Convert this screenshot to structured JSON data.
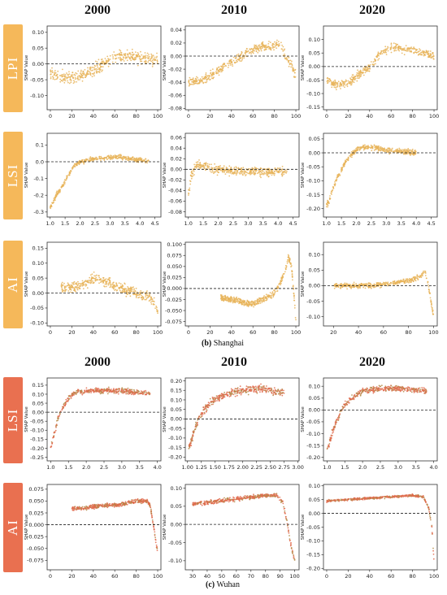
{
  "headers_top": [
    "2000",
    "2010",
    "2020"
  ],
  "headers_bottom": [
    "2000",
    "2010",
    "2020"
  ],
  "rows": [
    {
      "label": "LPI",
      "color": "#F5B85A"
    },
    {
      "label": "LSI",
      "color": "#F5B85A"
    },
    {
      "label": "AI",
      "color": "#F5B85A"
    },
    {
      "label": "LSI",
      "color": "#E97050"
    },
    {
      "label": "AI",
      "color": "#E97050"
    }
  ],
  "captions": [
    {
      "letter": "(b)",
      "city": "Shanghai"
    },
    {
      "letter": "(c)",
      "city": "Wuhan"
    }
  ],
  "colors": {
    "shanghai_points": "#E8B45A",
    "wuhan_points": "#E06A4C",
    "wuhan_points_alt": "#B58A48",
    "baseline": "#222222"
  },
  "chart_data": [
    {
      "id": "sh-lpi-2000",
      "type": "scatter",
      "row": 0,
      "col": 0,
      "ylabel": "SHAP Value",
      "xlim": [
        -3,
        103
      ],
      "ylim": [
        -0.145,
        0.12
      ],
      "xticks": [
        0,
        20,
        40,
        60,
        80,
        100
      ],
      "yticks": [
        -0.1,
        -0.05,
        0.0,
        0.05,
        0.1
      ],
      "x": [
        0,
        10,
        20,
        30,
        40,
        50,
        60,
        70,
        80,
        100
      ],
      "y": [
        -0.03,
        -0.04,
        -0.045,
        -0.035,
        -0.02,
        0.0,
        0.02,
        0.03,
        0.02,
        0.015
      ],
      "spread": 0.028
    },
    {
      "id": "sh-lpi-2010",
      "type": "scatter",
      "row": 0,
      "col": 1,
      "ylabel": "SHAP Value",
      "xlim": [
        -3,
        103
      ],
      "ylim": [
        -0.082,
        0.046
      ],
      "xticks": [
        0,
        20,
        40,
        60,
        80,
        100
      ],
      "yticks": [
        -0.08,
        -0.06,
        -0.04,
        -0.02,
        0.0,
        0.02,
        0.04
      ],
      "x": [
        0,
        10,
        20,
        30,
        40,
        50,
        60,
        70,
        80,
        85,
        90,
        95,
        100
      ],
      "y": [
        -0.04,
        -0.038,
        -0.03,
        -0.02,
        -0.01,
        0.0,
        0.01,
        0.015,
        0.015,
        0.02,
        0.0,
        -0.01,
        -0.03
      ],
      "spread": 0.01
    },
    {
      "id": "sh-lpi-2020",
      "type": "scatter",
      "row": 0,
      "col": 2,
      "ylabel": "SHAP Value",
      "xlim": [
        -3,
        103
      ],
      "ylim": [
        -0.16,
        0.15
      ],
      "xticks": [
        0,
        20,
        40,
        60,
        80,
        100
      ],
      "yticks": [
        -0.15,
        -0.1,
        -0.05,
        0.0,
        0.05,
        0.1
      ],
      "x": [
        0,
        10,
        20,
        30,
        40,
        50,
        60,
        70,
        80,
        90,
        100
      ],
      "y": [
        -0.05,
        -0.07,
        -0.06,
        -0.03,
        0.0,
        0.05,
        0.07,
        0.065,
        0.06,
        0.05,
        0.04
      ],
      "spread": 0.022
    },
    {
      "id": "sh-lsi-2000",
      "type": "scatter",
      "row": 1,
      "col": 0,
      "ylabel": "SHAP Value",
      "xlim": [
        0.9,
        4.7
      ],
      "ylim": [
        -0.33,
        0.17
      ],
      "xticks": [
        1.0,
        1.5,
        2.0,
        2.5,
        3.0,
        3.5,
        4.0,
        4.5
      ],
      "yticks": [
        -0.3,
        -0.2,
        -0.1,
        0.0,
        0.1
      ],
      "x": [
        1.0,
        1.1,
        1.2,
        1.4,
        1.6,
        1.8,
        2.0,
        2.3,
        2.6,
        3.0,
        3.3,
        3.6,
        3.9,
        4.3
      ],
      "y": [
        -0.27,
        -0.25,
        -0.2,
        -0.15,
        -0.08,
        -0.03,
        0.0,
        0.01,
        0.02,
        0.025,
        0.03,
        0.02,
        0.01,
        0.005
      ],
      "spread": 0.02
    },
    {
      "id": "sh-lsi-2010",
      "type": "scatter",
      "row": 1,
      "col": 1,
      "ylabel": "SHAP Value",
      "xlim": [
        0.9,
        4.7
      ],
      "ylim": [
        -0.09,
        0.068
      ],
      "xticks": [
        1.0,
        1.5,
        2.0,
        2.5,
        3.0,
        3.5,
        4.0,
        4.5
      ],
      "yticks": [
        -0.08,
        -0.06,
        -0.04,
        -0.02,
        0.0,
        0.02,
        0.04,
        0.06
      ],
      "x": [
        1.0,
        1.1,
        1.3,
        1.6,
        2.0,
        2.5,
        3.0,
        3.5,
        4.0,
        4.3
      ],
      "y": [
        -0.05,
        -0.01,
        0.01,
        0.005,
        0.0,
        -0.002,
        -0.003,
        -0.005,
        -0.004,
        -0.003
      ],
      "spread": 0.012
    },
    {
      "id": "sh-lsi-2020",
      "type": "scatter",
      "row": 1,
      "col": 2,
      "ylabel": "SHAP Value",
      "xlim": [
        0.9,
        4.7
      ],
      "ylim": [
        -0.23,
        0.07
      ],
      "xticks": [
        1.0,
        1.5,
        2.0,
        2.5,
        3.0,
        3.5,
        4.0,
        4.5
      ],
      "yticks": [
        -0.2,
        -0.15,
        -0.1,
        -0.05,
        0.0,
        0.05
      ],
      "x": [
        1.0,
        1.1,
        1.2,
        1.4,
        1.6,
        1.8,
        2.0,
        2.2,
        2.5,
        3.0,
        3.5,
        4.0
      ],
      "y": [
        -0.19,
        -0.17,
        -0.13,
        -0.08,
        -0.04,
        -0.01,
        0.01,
        0.02,
        0.02,
        0.01,
        0.005,
        0.0
      ],
      "spread": 0.014
    },
    {
      "id": "sh-ai-2000",
      "type": "scatter",
      "row": 2,
      "col": 0,
      "ylabel": "SHAP Value",
      "xlim": [
        -3,
        103
      ],
      "ylim": [
        -0.11,
        0.17
      ],
      "xticks": [
        0,
        20,
        40,
        60,
        80,
        100
      ],
      "yticks": [
        -0.1,
        -0.05,
        0.0,
        0.05,
        0.1,
        0.15
      ],
      "x": [
        10,
        20,
        30,
        40,
        50,
        60,
        70,
        80,
        90,
        95,
        100
      ],
      "y": [
        0.02,
        0.02,
        0.025,
        0.05,
        0.04,
        0.025,
        0.01,
        0.0,
        -0.01,
        -0.02,
        -0.06
      ],
      "spread": 0.025
    },
    {
      "id": "sh-ai-2010",
      "type": "scatter",
      "row": 2,
      "col": 1,
      "ylabel": "SHAP Value",
      "xlim": [
        -3,
        103
      ],
      "ylim": [
        -0.085,
        0.105
      ],
      "xticks": [
        0,
        20,
        40,
        60,
        80,
        100
      ],
      "yticks": [
        -0.075,
        -0.05,
        -0.025,
        0.0,
        0.025,
        0.05,
        0.075,
        0.1
      ],
      "x": [
        30,
        40,
        50,
        60,
        70,
        80,
        85,
        90,
        93,
        96,
        100
      ],
      "y": [
        -0.02,
        -0.025,
        -0.03,
        -0.035,
        -0.025,
        -0.01,
        0.01,
        0.04,
        0.07,
        0.05,
        -0.07
      ],
      "spread": 0.01
    },
    {
      "id": "sh-ai-2020",
      "type": "scatter",
      "row": 2,
      "col": 2,
      "ylabel": "SHAP Value",
      "xlim": [
        12,
        103
      ],
      "ylim": [
        -0.13,
        0.14
      ],
      "xticks": [
        20,
        40,
        60,
        80,
        100
      ],
      "yticks": [
        -0.1,
        -0.05,
        0.0,
        0.05,
        0.1
      ],
      "x": [
        20,
        30,
        40,
        50,
        60,
        70,
        80,
        90,
        93,
        96,
        100
      ],
      "y": [
        0.0,
        0.0,
        0.0,
        0.0,
        0.005,
        0.01,
        0.015,
        0.03,
        0.05,
        0.0,
        -0.1
      ],
      "spread": 0.012
    },
    {
      "id": "wh-lsi-2000",
      "type": "scatter",
      "row": 3,
      "col": 0,
      "ylabel": "SHAP Value",
      "xlim": [
        0.9,
        4.1
      ],
      "ylim": [
        -0.27,
        0.19
      ],
      "xticks": [
        1.0,
        1.5,
        2.0,
        2.5,
        3.0,
        3.5,
        4.0
      ],
      "yticks": [
        -0.25,
        -0.2,
        -0.15,
        -0.1,
        -0.05,
        0.0,
        0.05,
        0.1,
        0.15
      ],
      "x": [
        1.0,
        1.1,
        1.2,
        1.35,
        1.5,
        1.7,
        2.0,
        2.5,
        3.0,
        3.5,
        3.8
      ],
      "y": [
        -0.2,
        -0.12,
        -0.04,
        0.03,
        0.08,
        0.11,
        0.12,
        0.12,
        0.12,
        0.11,
        0.1
      ],
      "spread": 0.02
    },
    {
      "id": "wh-lsi-2010",
      "type": "scatter",
      "row": 3,
      "col": 1,
      "ylabel": "SHAP Value",
      "xlim": [
        0.96,
        3.02
      ],
      "ylim": [
        -0.22,
        0.215
      ],
      "xticks": [
        1.0,
        1.25,
        1.5,
        1.75,
        2.0,
        2.25,
        2.5,
        2.75,
        3.0
      ],
      "yticks": [
        -0.2,
        -0.15,
        -0.1,
        -0.05,
        0.0,
        0.05,
        0.1,
        0.15,
        0.2
      ],
      "x": [
        1.02,
        1.07,
        1.12,
        1.2,
        1.3,
        1.45,
        1.6,
        1.8,
        2.0,
        2.25,
        2.5,
        2.75
      ],
      "y": [
        -0.15,
        -0.12,
        -0.06,
        0.0,
        0.05,
        0.09,
        0.12,
        0.14,
        0.15,
        0.16,
        0.15,
        0.14
      ],
      "spread": 0.03
    },
    {
      "id": "wh-lsi-2020",
      "type": "scatter",
      "row": 3,
      "col": 2,
      "ylabel": "SHAP Value",
      "xlim": [
        0.9,
        4.1
      ],
      "ylim": [
        -0.215,
        0.135
      ],
      "xticks": [
        1.0,
        1.5,
        2.0,
        2.5,
        3.0,
        3.5,
        4.0
      ],
      "yticks": [
        -0.2,
        -0.15,
        -0.1,
        -0.05,
        0.0,
        0.05,
        0.1
      ],
      "x": [
        1.0,
        1.1,
        1.2,
        1.35,
        1.5,
        1.7,
        2.0,
        2.5,
        3.0,
        3.5,
        3.8
      ],
      "y": [
        -0.17,
        -0.12,
        -0.07,
        -0.02,
        0.02,
        0.05,
        0.08,
        0.09,
        0.09,
        0.085,
        0.08
      ],
      "spread": 0.018
    },
    {
      "id": "wh-ai-2000",
      "type": "scatter",
      "row": 4,
      "col": 0,
      "ylabel": "SHAP Value",
      "xlim": [
        -3,
        103
      ],
      "ylim": [
        -0.095,
        0.085
      ],
      "xticks": [
        0,
        20,
        40,
        60,
        80,
        100
      ],
      "yticks": [
        -0.075,
        -0.05,
        -0.025,
        0.0,
        0.025,
        0.05,
        0.075
      ],
      "x": [
        20,
        30,
        40,
        50,
        60,
        70,
        80,
        90,
        93,
        96,
        100
      ],
      "y": [
        0.035,
        0.035,
        0.038,
        0.04,
        0.042,
        0.045,
        0.05,
        0.05,
        0.04,
        0.0,
        -0.06
      ],
      "spread": 0.006
    },
    {
      "id": "wh-ai-2010",
      "type": "scatter",
      "row": 4,
      "col": 1,
      "ylabel": "SHAP Value",
      "xlim": [
        25,
        103
      ],
      "ylim": [
        -0.125,
        0.11
      ],
      "xticks": [
        30,
        40,
        50,
        60,
        70,
        80,
        90,
        100
      ],
      "yticks": [
        -0.1,
        -0.05,
        0.0,
        0.05,
        0.1
      ],
      "x": [
        30,
        40,
        50,
        60,
        70,
        80,
        88,
        92,
        95,
        97,
        100
      ],
      "y": [
        0.055,
        0.06,
        0.065,
        0.07,
        0.075,
        0.08,
        0.08,
        0.06,
        0.0,
        -0.05,
        -0.1
      ],
      "spread": 0.008
    },
    {
      "id": "wh-ai-2020",
      "type": "scatter",
      "row": 4,
      "col": 2,
      "ylabel": "SHAP Value",
      "xlim": [
        -3,
        103
      ],
      "ylim": [
        -0.205,
        0.105
      ],
      "xticks": [
        0,
        20,
        40,
        60,
        80,
        100
      ],
      "yticks": [
        -0.2,
        -0.15,
        -0.1,
        -0.05,
        0.0,
        0.05,
        0.1
      ],
      "x": [
        0,
        20,
        40,
        60,
        80,
        90,
        95,
        98,
        100
      ],
      "y": [
        0.045,
        0.05,
        0.055,
        0.06,
        0.065,
        0.06,
        0.02,
        -0.05,
        -0.18
      ],
      "spread": 0.006
    }
  ]
}
